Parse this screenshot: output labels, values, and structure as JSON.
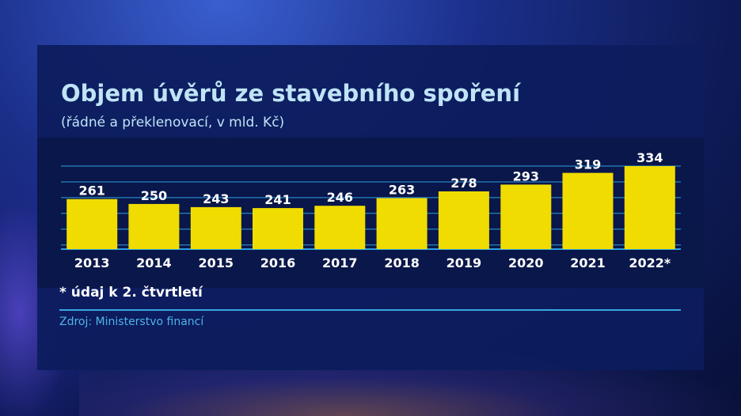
{
  "chart_data": {
    "type": "bar",
    "title": "Objem úvěrů ze stavebního spoření",
    "subtitle": "(řádné a překlenovací, v mld. Kč)",
    "categories": [
      "2013",
      "2014",
      "2015",
      "2016",
      "2017",
      "2018",
      "2019",
      "2020",
      "2021",
      "2022*"
    ],
    "values": [
      261,
      250,
      243,
      241,
      246,
      263,
      278,
      293,
      319,
      334
    ],
    "ylim": [
      0,
      334
    ],
    "grid": true,
    "legend": "none",
    "bar_color": "#f0dc00",
    "footnote": "* údaj k 2. čtvrtletí",
    "source": "Zdroj: Ministerstvo financí"
  },
  "colors": {
    "title": "#bfe4f6",
    "bar": "#f0dc00",
    "grid": "#2c9fe0",
    "value_label": "#ffffff",
    "source": "#4fb3ea",
    "panel": "#0c1c5c"
  }
}
